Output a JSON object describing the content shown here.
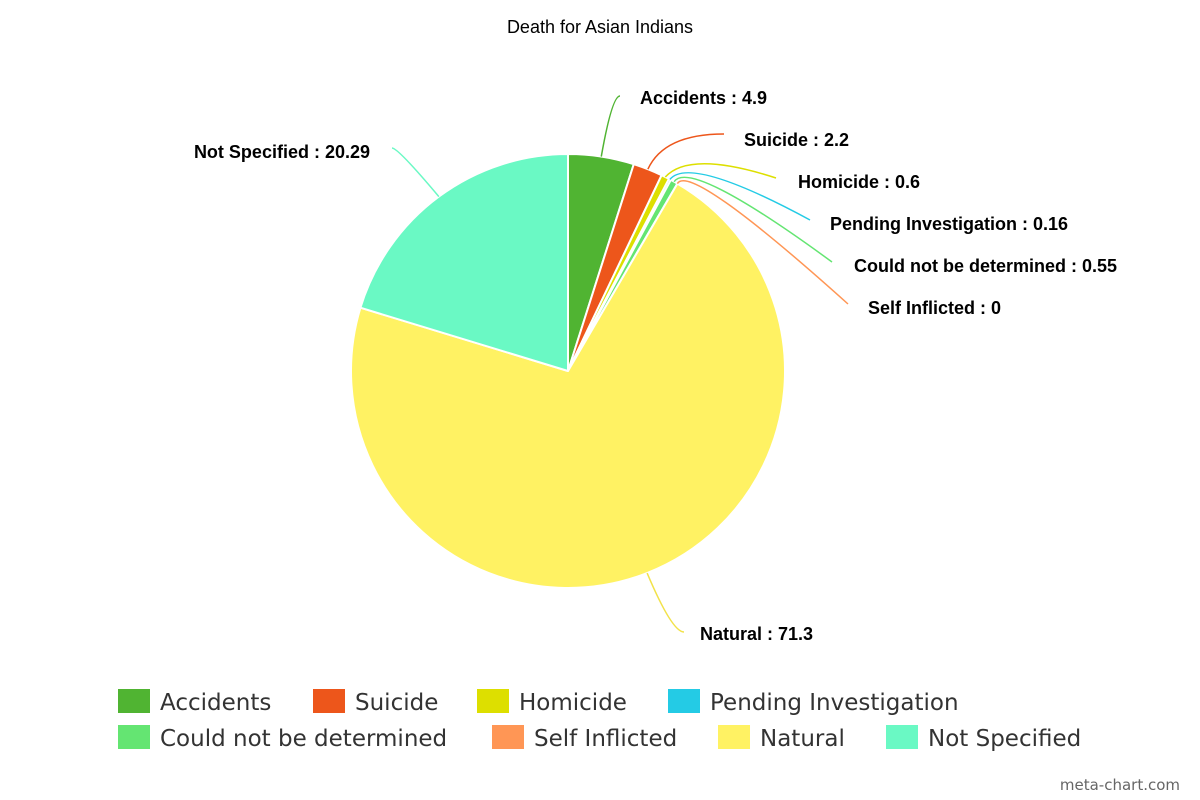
{
  "chart_data": {
    "type": "pie",
    "title": "Death for Asian Indians",
    "label_separator": " : ",
    "slices": [
      {
        "name": "Accidents",
        "value": 4.9,
        "color": "#50b432"
      },
      {
        "name": "Suicide",
        "value": 2.2,
        "color": "#ed561b"
      },
      {
        "name": "Homicide",
        "value": 0.6,
        "color": "#dddf00"
      },
      {
        "name": "Pending Investigation",
        "value": 0.16,
        "color": "#24cbe5"
      },
      {
        "name": "Could not be determined",
        "value": 0.55,
        "color": "#64e572"
      },
      {
        "name": "Self Inflicted",
        "value": 0,
        "color": "#ff9655"
      },
      {
        "name": "Natural",
        "value": 71.3,
        "color": "#fff263"
      },
      {
        "name": "Not Specified",
        "value": 20.29,
        "color": "#6af9c4"
      }
    ],
    "legend_placement": "bottom"
  },
  "credit": "meta-chart.com"
}
